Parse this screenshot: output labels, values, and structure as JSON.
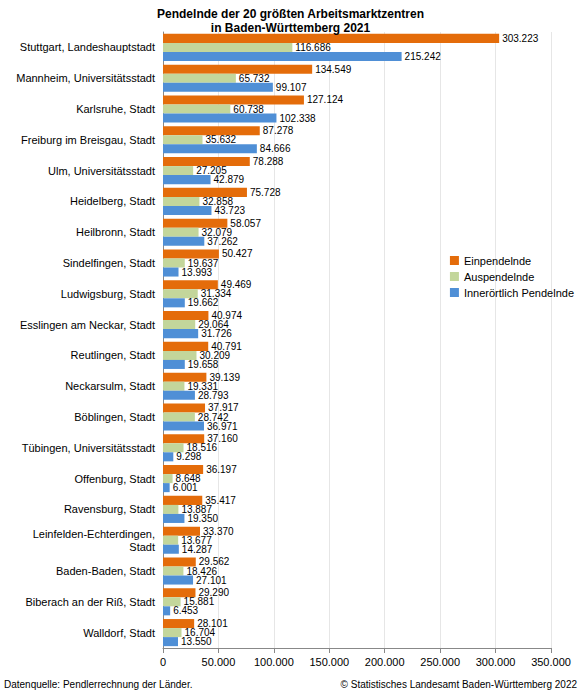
{
  "chart_data": {
    "type": "bar",
    "title": "Pendelnde der 20 größten Arbeitsmarktzentren\nin Baden-Württemberg 2021",
    "orientation": "horizontal",
    "grid": true,
    "legend": "right",
    "data_labels": true,
    "categories": [
      "Stuttgart, Landeshauptstadt",
      "Mannheim, Universitätsstadt",
      "Karlsruhe, Stadt",
      "Freiburg im Breisgau, Stadt",
      "Ulm, Universitätsstadt",
      "Heidelberg, Stadt",
      "Heilbronn, Stadt",
      "Sindelfingen, Stadt",
      "Ludwigsburg, Stadt",
      "Esslingen am Neckar, Stadt",
      "Reutlingen, Stadt",
      "Neckarsulm, Stadt",
      "Böblingen, Stadt",
      "Tübingen, Universitätsstadt",
      "Offenburg, Stadt",
      "Ravensburg, Stadt",
      "Leinfelden-Echterdingen,\nStadt",
      "Baden-Baden, Stadt",
      "Biberach an der Riß, Stadt",
      "Walldorf, Stadt"
    ],
    "series": [
      {
        "name": "Einpendelnde",
        "color": "#e46c0a",
        "values": [
          303223,
          134549,
          127124,
          87278,
          78288,
          75728,
          58057,
          50427,
          49469,
          40974,
          40791,
          39139,
          37917,
          37160,
          36197,
          35417,
          33370,
          29562,
          29290,
          28101
        ],
        "value_labels": [
          "303.223",
          "134.549",
          "127.124",
          "87.278",
          "78.288",
          "75.728",
          "58.057",
          "50.427",
          "49.469",
          "40.974",
          "40.791",
          "39.139",
          "37.917",
          "37.160",
          "36.197",
          "35.417",
          "33.370",
          "29.562",
          "29.290",
          "28.101"
        ]
      },
      {
        "name": "Auspendelnde",
        "color": "#c3d69b",
        "values": [
          116686,
          65732,
          60738,
          35632,
          27205,
          32858,
          32079,
          19637,
          31334,
          29064,
          30209,
          19331,
          28742,
          18516,
          8648,
          13887,
          13677,
          18426,
          15881,
          16704
        ],
        "value_labels": [
          "116.686",
          "65.732",
          "60.738",
          "35.632",
          "27.205",
          "32.858",
          "32.079",
          "19.637",
          "31.334",
          "29.064",
          "30.209",
          "19.331",
          "28.742",
          "18.516",
          "8.648",
          "13.887",
          "13.677",
          "18.426",
          "15.881",
          "16.704"
        ]
      },
      {
        "name": "Innerörtlich Pendelnde",
        "color": "#4f8fd6",
        "values": [
          215242,
          99107,
          102338,
          84666,
          42879,
          43723,
          37262,
          13993,
          19662,
          31726,
          19658,
          28793,
          36971,
          9298,
          6001,
          19350,
          14287,
          27101,
          6453,
          13550
        ],
        "value_labels": [
          "215.242",
          "99.107",
          "102.338",
          "84.666",
          "42.879",
          "43.723",
          "37.262",
          "13.993",
          "19.662",
          "31.726",
          "19.658",
          "28.793",
          "36.971",
          "9.298",
          "6.001",
          "19.350",
          "14.287",
          "27.101",
          "6.453",
          "13.550"
        ]
      }
    ],
    "xlim": [
      0,
      350000
    ],
    "xticks": [
      0,
      {
        "value": 50000,
        "label": "50.000"
      },
      {
        "value": 100000,
        "label": "100.000"
      },
      {
        "value": 150000,
        "label": "150.000"
      },
      {
        "value": 200000,
        "label": "200.000"
      },
      {
        "value": 250000,
        "label": "250.000"
      },
      {
        "value": 300000,
        "label": "300.000"
      },
      {
        "value": 350000,
        "label": "350.000"
      }
    ],
    "source_note": "Datenquelle: Pendlerrechnung der Länder.",
    "copyright": "© Statistisches Landesamt Baden-Württemberg 2022"
  }
}
